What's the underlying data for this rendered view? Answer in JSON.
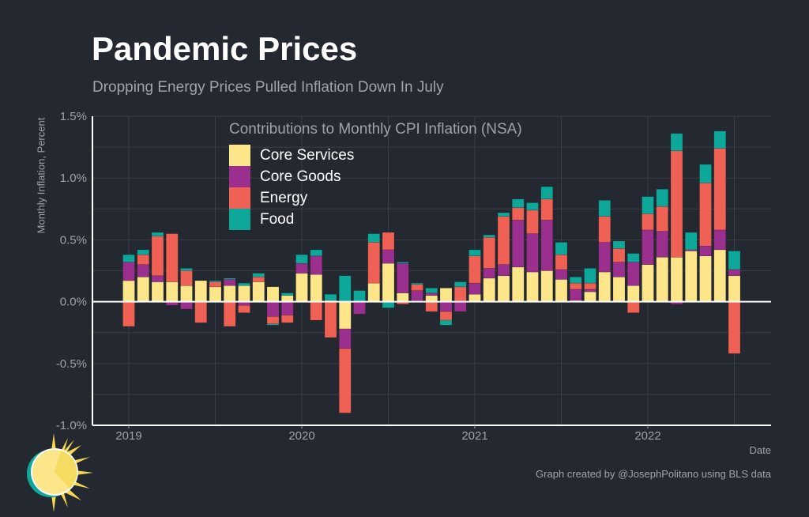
{
  "header": {
    "title": "Pandemic Prices",
    "subtitle": "Dropping Energy Prices Pulled Inflation Down In July"
  },
  "footer": {
    "credit": "Graph created by @JosephPolitano using BLS data"
  },
  "chart_data": {
    "type": "bar",
    "stacked": true,
    "title": "Pandemic Prices",
    "subtitle": "Dropping Energy Prices Pulled Inflation Down In July",
    "xlabel": "Date",
    "ylabel": "Monthly Inflation, Percent",
    "ylim": [
      -1.0,
      1.5
    ],
    "y_ticks": [
      "-1.0%",
      "-0.5%",
      "0.0%",
      "0.5%",
      "1.0%",
      "1.5%"
    ],
    "y_tick_values": [
      -1.0,
      -0.5,
      0.0,
      0.5,
      1.0,
      1.5
    ],
    "x_ticks": [
      "2019",
      "2020",
      "2021",
      "2022"
    ],
    "grid": true,
    "legend": {
      "title": "Contributions to Monthly CPI Inflation (NSA)",
      "placement": "top-left"
    },
    "categories": [
      "2019-01",
      "2019-02",
      "2019-03",
      "2019-04",
      "2019-05",
      "2019-06",
      "2019-07",
      "2019-08",
      "2019-09",
      "2019-10",
      "2019-11",
      "2019-12",
      "2020-01",
      "2020-02",
      "2020-03",
      "2020-04",
      "2020-05",
      "2020-06",
      "2020-07",
      "2020-08",
      "2020-09",
      "2020-10",
      "2020-11",
      "2020-12",
      "2021-01",
      "2021-02",
      "2021-03",
      "2021-04",
      "2021-05",
      "2021-06",
      "2021-07",
      "2021-08",
      "2021-09",
      "2021-10",
      "2021-11",
      "2021-12",
      "2022-01",
      "2022-02",
      "2022-03",
      "2022-04",
      "2022-05",
      "2022-06",
      "2022-07"
    ],
    "series": [
      {
        "name": "Core Services",
        "color": "#fde68a",
        "values": [
          0.17,
          0.2,
          0.16,
          0.16,
          0.13,
          0.17,
          0.12,
          0.13,
          0.13,
          0.16,
          0.12,
          0.05,
          0.23,
          0.22,
          0.01,
          -0.22,
          0.0,
          0.15,
          0.31,
          0.07,
          0.0,
          0.05,
          0.11,
          0.0,
          0.06,
          0.19,
          0.21,
          0.28,
          0.24,
          0.25,
          0.18,
          0.01,
          0.08,
          0.24,
          0.2,
          0.13,
          0.3,
          0.36,
          0.36,
          0.41,
          0.37,
          0.42,
          0.21
        ]
      },
      {
        "name": "Core Goods",
        "color": "#9b2f8e",
        "values": [
          0.15,
          0.1,
          0.05,
          -0.03,
          -0.06,
          0.0,
          0.0,
          0.05,
          -0.03,
          0.0,
          -0.12,
          -0.11,
          0.08,
          0.15,
          0.0,
          -0.16,
          -0.1,
          0.0,
          0.11,
          0.24,
          0.09,
          0.02,
          -0.08,
          -0.08,
          0.09,
          0.08,
          0.09,
          0.38,
          0.31,
          0.41,
          0.08,
          0.09,
          0.02,
          0.24,
          0.12,
          0.19,
          0.28,
          0.21,
          -0.02,
          0.01,
          0.08,
          0.16,
          0.05
        ]
      },
      {
        "name": "Energy",
        "color": "#ef6154",
        "values": [
          -0.2,
          0.08,
          0.32,
          0.39,
          0.12,
          -0.17,
          0.04,
          -0.2,
          -0.06,
          0.04,
          -0.06,
          -0.06,
          0.0,
          -0.15,
          -0.29,
          -0.52,
          0.0,
          0.33,
          0.14,
          -0.02,
          0.05,
          -0.08,
          -0.07,
          0.12,
          0.22,
          0.25,
          0.39,
          0.1,
          0.19,
          0.17,
          0.12,
          0.05,
          0.05,
          0.21,
          0.11,
          -0.09,
          0.13,
          0.2,
          0.86,
          0.0,
          0.51,
          0.66,
          -0.42
        ]
      },
      {
        "name": "Food",
        "color": "#0ea89a",
        "values": [
          0.06,
          0.04,
          0.03,
          0.0,
          0.02,
          0.0,
          0.01,
          0.01,
          0.02,
          0.03,
          -0.01,
          0.02,
          0.07,
          0.05,
          0.05,
          0.21,
          0.09,
          0.07,
          -0.05,
          0.01,
          0.01,
          0.04,
          -0.04,
          0.04,
          0.05,
          0.02,
          0.03,
          0.07,
          0.06,
          0.1,
          0.1,
          0.05,
          0.12,
          0.13,
          0.06,
          0.07,
          0.14,
          0.14,
          0.14,
          0.14,
          0.15,
          0.14,
          0.15
        ]
      }
    ]
  },
  "colors": {
    "background": "#242830",
    "grid": "#3a3e46",
    "axis": "#ffffff",
    "muted_text": "#a0a3a8"
  }
}
